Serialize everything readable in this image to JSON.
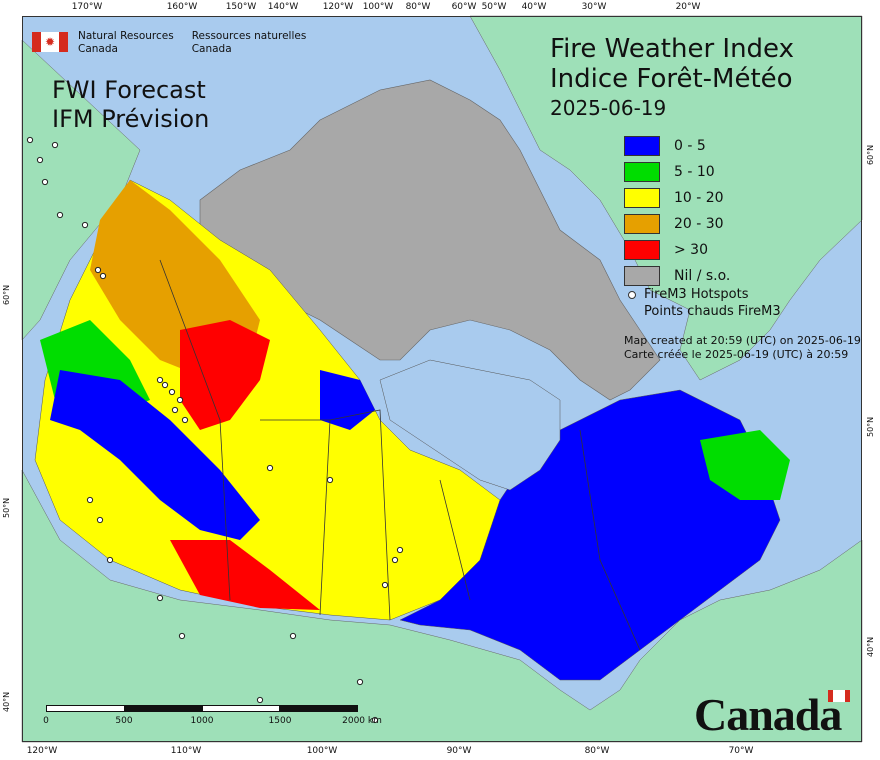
{
  "agency": {
    "english": [
      "Natural Resources",
      "Canada"
    ],
    "french": [
      "Ressources naturelles",
      "Canada"
    ]
  },
  "product": {
    "line1": "FWI Forecast",
    "line2": "IFM Prévision"
  },
  "title": {
    "line1": "Fire Weather Index",
    "line2": "Indice Forêt-Météo",
    "date": "2025-06-19"
  },
  "legend": [
    {
      "label": "0 - 5",
      "color": "#0000ff"
    },
    {
      "label": "5 - 10",
      "color": "#00dd00"
    },
    {
      "label": "10 - 20",
      "color": "#ffff00"
    },
    {
      "label": "20 - 30",
      "color": "#e6a000"
    },
    {
      "label": "> 30",
      "color": "#ff0000"
    },
    {
      "label": "Nil / s.o.",
      "color": "#a8a8a8"
    }
  ],
  "hotspots": {
    "line1": "FireM3 Hotspots",
    "line2": "Points chauds FireM3"
  },
  "created": {
    "line1": "Map created at 20:59 (UTC) on 2025-06-19",
    "line2": "Carte créée le 2025-06-19 (UTC) à 20:59"
  },
  "wordmark": "Canada",
  "colors": {
    "ocean": "#a9cbee",
    "land_foreign": "#9ee0b8",
    "land_nil": "#a8a8a8",
    "boundary": "#333333"
  },
  "graticule": {
    "top": [
      "170°W",
      "160°W",
      "150°W",
      "140°W",
      "120°W",
      "100°W",
      "80°W",
      "60°W",
      "50°W",
      "40°W",
      "30°W",
      "20°W"
    ],
    "bottom": [
      "120°W",
      "110°W",
      "100°W",
      "90°W",
      "80°W",
      "70°W"
    ],
    "left": [
      "60°N",
      "50°N",
      "40°N"
    ],
    "right": [
      "60°N",
      "50°N",
      "40°N"
    ]
  },
  "scale": {
    "labels": [
      "0",
      "500",
      "1000",
      "1500",
      "2000 km"
    ]
  }
}
